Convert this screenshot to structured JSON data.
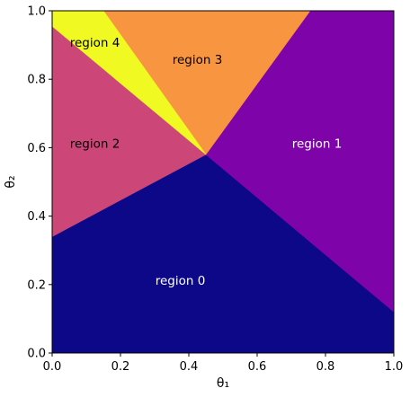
{
  "chart_data": {
    "type": "region-map",
    "title": "",
    "xlabel": "θ₁",
    "ylabel": "θ₂",
    "xlim": [
      0,
      1
    ],
    "ylim": [
      0,
      1
    ],
    "grid": false,
    "xticks": [
      "0.0",
      "0.2",
      "0.4",
      "0.6",
      "0.8",
      "1.0"
    ],
    "yticks": [
      "0.0",
      "0.2",
      "0.4",
      "0.6",
      "0.8",
      "1.0"
    ],
    "xtick_values": [
      0,
      0.2,
      0.4,
      0.6,
      0.8,
      1.0
    ],
    "ytick_values": [
      0,
      0.2,
      0.4,
      0.6,
      0.8,
      1.0
    ],
    "vertex": [
      0.45,
      0.58
    ],
    "regions": [
      {
        "name": "region 0",
        "label": "region 0",
        "color": "#0d0887",
        "label_color": "#ffffff",
        "label_at": [
          0.375,
          0.21
        ],
        "polygon": [
          [
            0,
            0
          ],
          [
            1,
            0
          ],
          [
            1,
            0.12
          ],
          [
            0.45,
            0.58
          ],
          [
            0,
            0.34
          ]
        ]
      },
      {
        "name": "region 1",
        "label": "region 1",
        "color": "#7e03a8",
        "label_color": "#ffffff",
        "label_at": [
          0.775,
          0.61
        ],
        "polygon": [
          [
            1,
            0.12
          ],
          [
            1,
            1
          ],
          [
            0.755,
            1
          ],
          [
            0.45,
            0.58
          ]
        ]
      },
      {
        "name": "region 2",
        "label": "region 2",
        "color": "#cc4778",
        "label_color": "#000000",
        "label_at": [
          0.125,
          0.61
        ],
        "polygon": [
          [
            0,
            0.34
          ],
          [
            0.45,
            0.58
          ],
          [
            0,
            0.955
          ]
        ]
      },
      {
        "name": "region 3",
        "label": "region 3",
        "color": "#f89540",
        "label_color": "#000000",
        "label_at": [
          0.425,
          0.855
        ],
        "polygon": [
          [
            0.15,
            1
          ],
          [
            0.755,
            1
          ],
          [
            0.45,
            0.58
          ]
        ]
      },
      {
        "name": "region 4",
        "label": "region 4",
        "color": "#f0f921",
        "label_color": "#000000",
        "label_at": [
          0.125,
          0.905
        ],
        "polygon": [
          [
            0,
            1
          ],
          [
            0.15,
            1
          ],
          [
            0.45,
            0.58
          ],
          [
            0,
            0.955
          ]
        ]
      }
    ]
  }
}
